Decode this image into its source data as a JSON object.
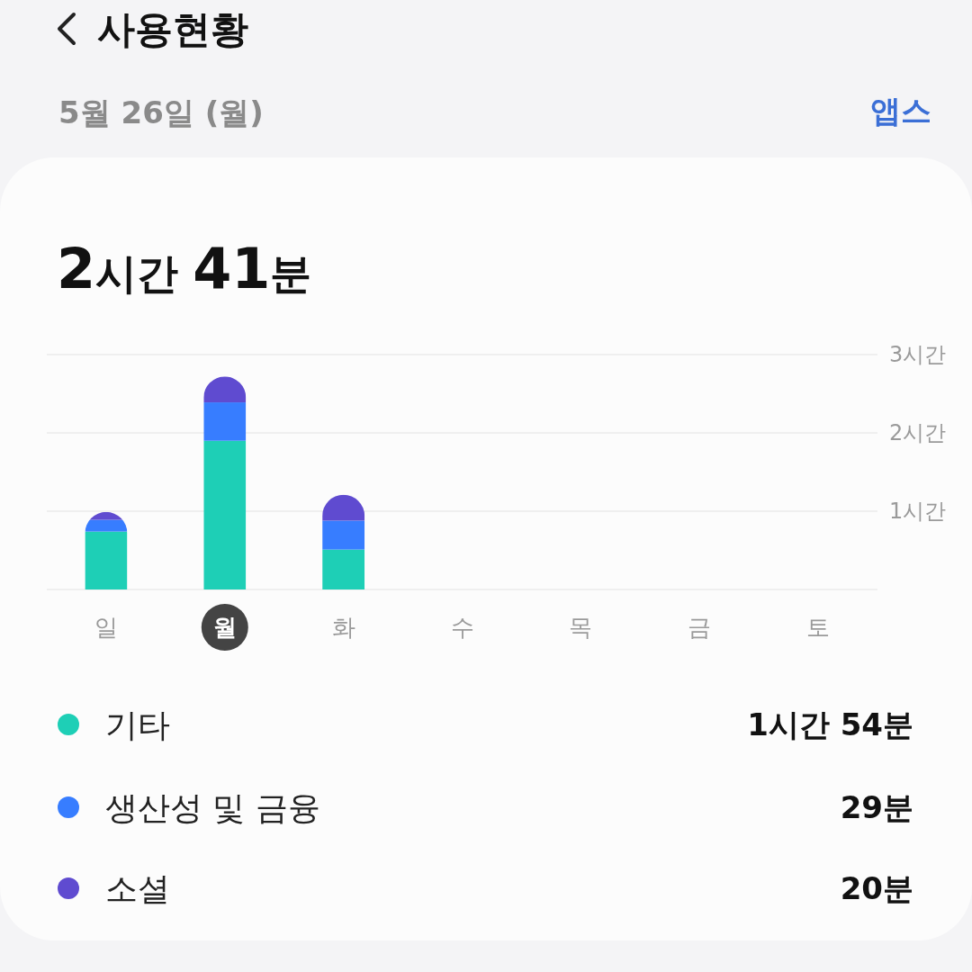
{
  "chart_data": {
    "type": "bar",
    "title": "사용현황",
    "subtitle": "5월 26일 (월)",
    "categories": [
      "일",
      "월",
      "화",
      "수",
      "목",
      "금",
      "토"
    ],
    "series": [
      {
        "name": "기타",
        "color": "#1ecfb6",
        "values": [
          0.74,
          1.9,
          0.51,
          null,
          null,
          null,
          null
        ]
      },
      {
        "name": "생산성 및 금융",
        "color": "#377dff",
        "values": [
          0.15,
          0.49,
          0.37,
          null,
          null,
          null,
          null
        ]
      },
      {
        "name": "소셜",
        "color": "#5f4bd0",
        "values": [
          0.1,
          0.33,
          0.33,
          null,
          null,
          null,
          null
        ]
      }
    ],
    "stacked": true,
    "ylim": [
      0,
      3
    ],
    "yticks": [
      {
        "value": 0,
        "label": null
      },
      {
        "value": 1,
        "label": "1시간"
      },
      {
        "value": 2,
        "label": "2시간"
      },
      {
        "value": 3,
        "label": "3시간"
      }
    ],
    "grid": "y",
    "legend": "bottom",
    "annotations": [
      "앱스",
      "2시간 41분",
      "1시간 54분",
      "29분",
      "20분"
    ]
  }
}
